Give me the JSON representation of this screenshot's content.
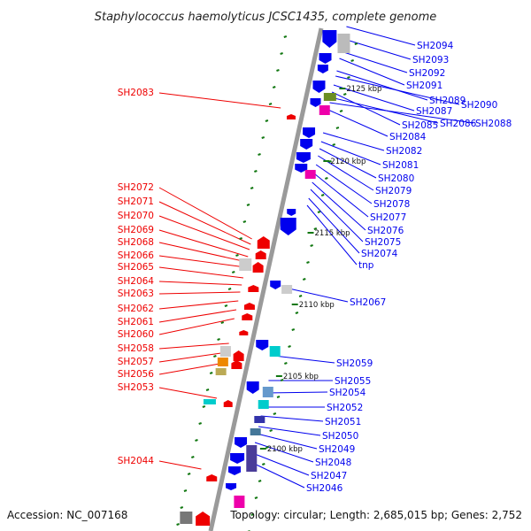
{
  "title": "Staphylococcus haemolyticus JCSC1435, complete genome",
  "footer": {
    "accession": "Accession: NC_007168",
    "topology": "Topology: circular; Length: 2,685,015 bp; Genes: 2,752"
  },
  "colors": {
    "forward": "#ee0000",
    "reverse": "#0000ee",
    "backbone": "#9a9a9a",
    "tick": "#117711"
  },
  "scale_labels": [
    "2125 kbp",
    "2120 kbp",
    "2115 kbp",
    "2110 kbp",
    "2105 kbp",
    "2100 kbp"
  ],
  "forward_genes": [
    "SH2083",
    "SH2072",
    "SH2071",
    "SH2070",
    "SH2069",
    "SH2068",
    "SH2066",
    "SH2065",
    "SH2064",
    "SH2063",
    "SH2062",
    "SH2061",
    "SH2060",
    "SH2058",
    "SH2057",
    "SH2056",
    "SH2053",
    "SH2044"
  ],
  "reverse_genes": [
    "SH2094",
    "SH2093",
    "SH2092",
    "SH2091",
    "SH2089",
    "SH2090",
    "SH2087",
    "SH2085",
    "SH2086",
    "SH2088",
    "SH2084",
    "SH2082",
    "SH2081",
    "SH2080",
    "SH2079",
    "SH2078",
    "SH2077",
    "SH2076",
    "SH2075",
    "SH2074",
    "tnp",
    "SH2067",
    "SH2059",
    "SH2055",
    "SH2054",
    "SH2052",
    "SH2051",
    "SH2050",
    "SH2049",
    "SH2048",
    "SH2047",
    "SH2046"
  ]
}
